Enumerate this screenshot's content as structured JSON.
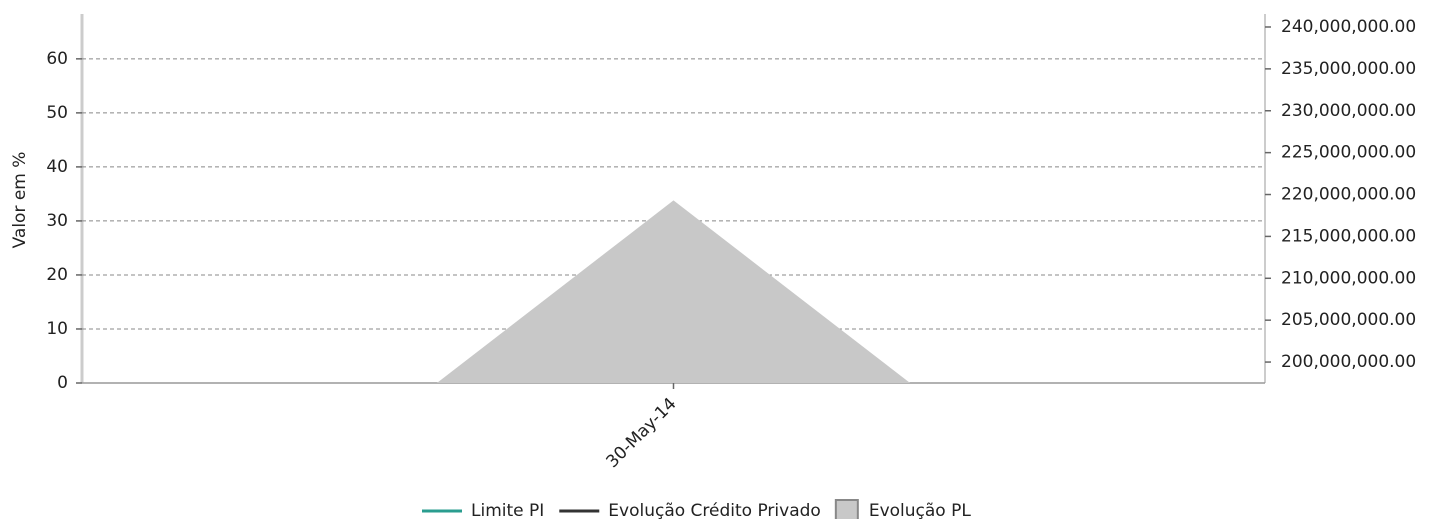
{
  "chart_data": {
    "type": "line",
    "y_label": "Valor em %",
    "categories": [
      "30-May-14"
    ],
    "series": [
      {
        "name": "Limite PI",
        "color": "#2a9d8f",
        "type": "line",
        "values": [
          null
        ]
      },
      {
        "name": "Evolução Crédito Privado",
        "color": "#333333",
        "type": "line",
        "values": [
          null
        ]
      },
      {
        "name": "Evolução PL",
        "color": "#c8c8c8",
        "type": "area",
        "axis": "y2",
        "values": [
          219300000
        ]
      }
    ],
    "ylim": [
      0,
      68.3
    ],
    "yticks": [
      0,
      10,
      20,
      30,
      40,
      50,
      60
    ],
    "y2lim": [
      197500000,
      241550000
    ],
    "y2ticks": [
      {
        "value": 200000000,
        "label": "200,000,000.00"
      },
      {
        "value": 205000000,
        "label": "205,000,000.00"
      },
      {
        "value": 210000000,
        "label": "210,000,000.00"
      },
      {
        "value": 215000000,
        "label": "215,000,000.00"
      },
      {
        "value": 220000000,
        "label": "220,000,000.00"
      },
      {
        "value": 225000000,
        "label": "225,000,000.00"
      },
      {
        "value": 230000000,
        "label": "230,000,000.00"
      },
      {
        "value": 235000000,
        "label": "235,000,000.00"
      },
      {
        "value": 240000000,
        "label": "240,000,000.00"
      }
    ],
    "grid": true
  }
}
